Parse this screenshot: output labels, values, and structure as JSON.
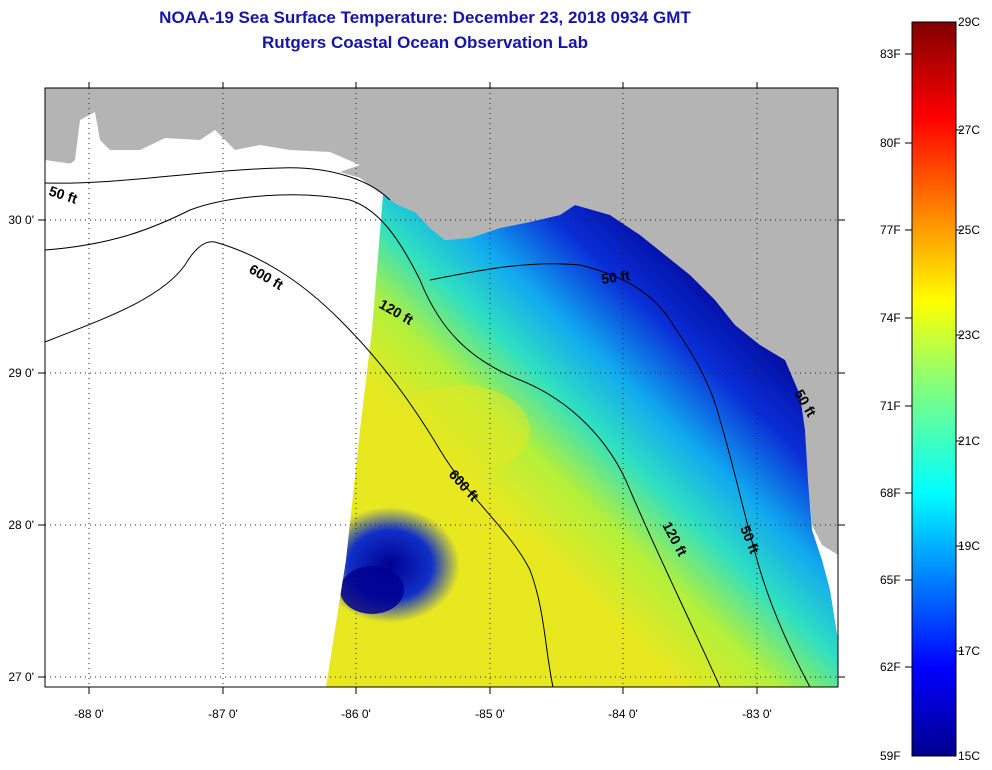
{
  "header": {
    "title": "NOAA-19 Sea Surface Temperature:  December 23, 2018 0934 GMT",
    "subtitle": "Rutgers Coastal Ocean Observation Lab"
  },
  "map": {
    "lon_labels": [
      "-88 0'",
      "-87 0'",
      "-86 0'",
      "-85 0'",
      "-84 0'",
      "-83 0'"
    ],
    "lat_labels": [
      "30 0'",
      "29 0'",
      "28 0'",
      "27 0'"
    ],
    "contours": [
      {
        "label": "50 ft"
      },
      {
        "label": "600 ft"
      },
      {
        "label": "120 ft"
      },
      {
        "label": "50 ft"
      },
      {
        "label": "600 ft"
      },
      {
        "label": "120 ft"
      },
      {
        "label": "50 ft"
      },
      {
        "label": "50 ft"
      }
    ]
  },
  "colorbar": {
    "fahrenheit": [
      "83F",
      "80F",
      "77F",
      "74F",
      "71F",
      "68F",
      "65F",
      "62F",
      "59F"
    ],
    "celsius": [
      "29C",
      "27C",
      "25C",
      "23C",
      "21C",
      "19C",
      "17C",
      "15C"
    ]
  },
  "colors": {
    "land": "#b4b4b4",
    "title": "#1515a8",
    "sst_cold": "#00008a",
    "sst_warm": "#dede1e"
  }
}
